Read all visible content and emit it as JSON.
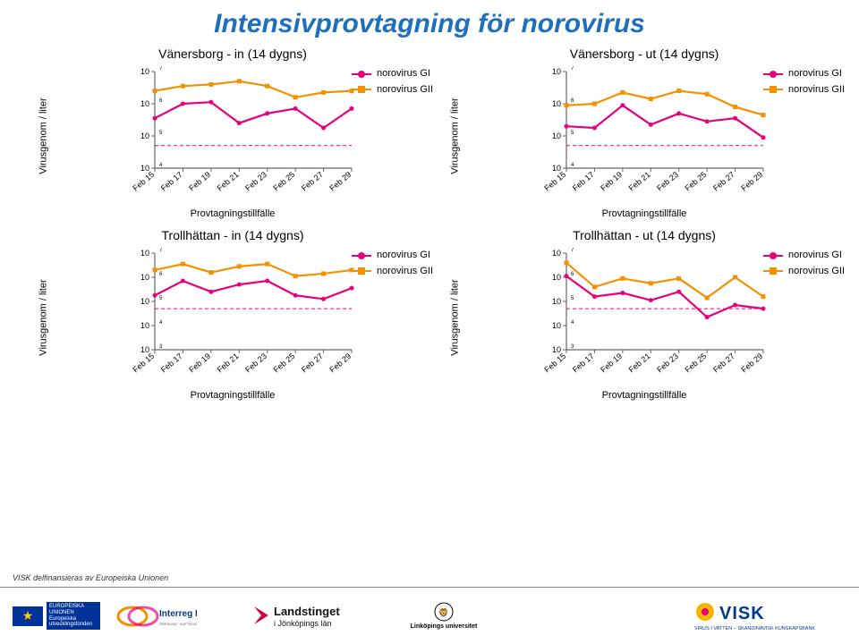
{
  "page": {
    "title": "Intensivprovtagning för norovirus",
    "title_color": "#1f6fbf",
    "background_color": "#ffffff",
    "footer_note": "VISK delfinansieras av Europeiska Unionen"
  },
  "shared": {
    "ylabel": "Virusgenom / liter",
    "xlabel": "Provtagningstillfälle",
    "x_categories": [
      "Feb 15",
      "Feb 17",
      "Feb 19",
      "Feb 21",
      "Feb 23",
      "Feb 25",
      "Feb 27",
      "Feb 29"
    ],
    "legend": [
      {
        "label": "norovirus GI",
        "color": "#e6007e",
        "marker": "circle"
      },
      {
        "label": "norovirus GII",
        "color": "#f39200",
        "marker": "square"
      }
    ],
    "axis_color": "#666666",
    "grid_none": true,
    "threshold_line": {
      "y": 4.7,
      "color": "#e6007e",
      "dash": "4 3",
      "width": 1
    },
    "tick_fontsize": 9,
    "label_fontsize": 11,
    "title_fontsize": 14,
    "line_width": 2.2,
    "marker_size": 5
  },
  "charts": [
    {
      "id": "vanersborg-in",
      "title": "Vänersborg - in (14 dygns)",
      "ylim": [
        4,
        7
      ],
      "ytick_exp": [
        4,
        5,
        6,
        7
      ],
      "series": [
        {
          "name": "norovirus GI",
          "color": "#e6007e",
          "marker": "circle",
          "y": [
            5.55,
            6.0,
            6.05,
            5.4,
            5.7,
            5.85,
            5.25,
            5.85
          ]
        },
        {
          "name": "norovirus GII",
          "color": "#f39200",
          "marker": "square",
          "y": [
            6.4,
            6.55,
            6.6,
            6.7,
            6.55,
            6.2,
            6.35,
            6.4
          ]
        }
      ]
    },
    {
      "id": "vanersborg-ut",
      "title": "Vänersborg - ut (14 dygns)",
      "ylim": [
        4,
        7
      ],
      "ytick_exp": [
        4,
        5,
        6,
        7
      ],
      "series": [
        {
          "name": "norovirus GI",
          "color": "#e6007e",
          "marker": "circle",
          "y": [
            5.3,
            5.25,
            5.95,
            5.35,
            5.7,
            5.45,
            5.55,
            4.95
          ]
        },
        {
          "name": "norovirus GII",
          "color": "#f39200",
          "marker": "square",
          "y": [
            5.95,
            6.0,
            6.35,
            6.15,
            6.4,
            6.3,
            5.9,
            5.65
          ]
        }
      ]
    },
    {
      "id": "trollhattan-in",
      "title": "Trollhättan - in (14 dygns)",
      "ylim": [
        3,
        7
      ],
      "ytick_exp": [
        3,
        4,
        5,
        6,
        7
      ],
      "series": [
        {
          "name": "norovirus GI",
          "color": "#e6007e",
          "marker": "circle",
          "y": [
            5.25,
            5.85,
            5.4,
            5.7,
            5.85,
            5.25,
            5.1,
            5.55
          ]
        },
        {
          "name": "norovirus GII",
          "color": "#f39200",
          "marker": "square",
          "y": [
            6.3,
            6.55,
            6.2,
            6.45,
            6.55,
            6.05,
            6.15,
            6.3
          ]
        }
      ]
    },
    {
      "id": "trollhattan-ut",
      "title": "Trollhättan - ut (14 dygns)",
      "ylim": [
        3,
        7
      ],
      "ytick_exp": [
        3,
        4,
        5,
        6,
        7
      ],
      "series": [
        {
          "name": "norovirus GI",
          "color": "#e6007e",
          "marker": "circle",
          "y": [
            6.05,
            5.2,
            5.35,
            5.05,
            5.4,
            4.35,
            4.85,
            4.7
          ]
        },
        {
          "name": "norovirus GII",
          "color": "#f39200",
          "marker": "square",
          "y": [
            6.6,
            5.6,
            5.95,
            5.75,
            5.95,
            5.15,
            6.0,
            5.2
          ]
        }
      ]
    }
  ],
  "footer_logos": {
    "eu_text": "EUROPEISKA UNIONEN Europeiska utvecklingsfonden",
    "interreg": "Interreg IV A",
    "interreg_sub": "ÖRESUND · KATTEGAT · SKAGERRAK",
    "landstinget": "Landstinget",
    "landstinget_sub": "i Jönköpings län",
    "linkoping": "Linköpings universitet",
    "visk": "VISK",
    "visk_sub": "VIRUS I VATTEN – SKANDINAVISK KUNSKAPSBANK"
  }
}
